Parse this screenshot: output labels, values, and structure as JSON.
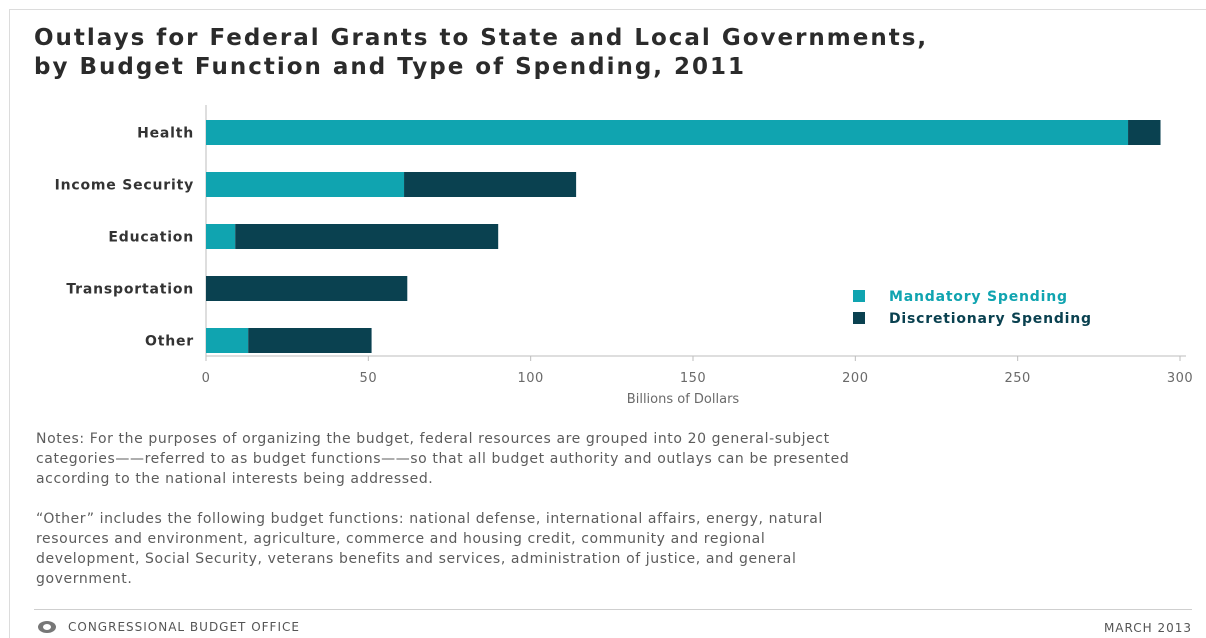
{
  "title_lines": [
    "Outlays for Federal Grants to State and Local Governments,",
    "by Budget Function and Type of Spending, 2011"
  ],
  "chart_data": {
    "type": "bar",
    "orientation": "horizontal",
    "stacked": true,
    "categories": [
      "Health",
      "Income Security",
      "Education",
      "Transportation",
      "Other"
    ],
    "series": [
      {
        "name": "Mandatory Spending",
        "color": "#10a4b0",
        "values": [
          284,
          61,
          9,
          0,
          13
        ]
      },
      {
        "name": "Discretionary Spending",
        "color": "#0a4150",
        "values": [
          10,
          53,
          81,
          62,
          38
        ]
      }
    ],
    "xlabel": "Billions of Dollars",
    "xlim": [
      0,
      300
    ],
    "xticks": [
      "0",
      "50",
      "100",
      "150",
      "200",
      "250",
      "300"
    ],
    "legend_position": "right",
    "grid": false
  },
  "notes": {
    "p1_lines": [
      "Notes: For the purposes of organizing the budget, federal resources are grouped into 20 general-subject",
      "categories——referred to as budget functions——so that all budget authority and outlays can be presented",
      "according to the national interests being addressed."
    ],
    "p2_lines": [
      "“Other” includes the following budget functions: national defense, international affairs, energy, natural",
      "resources and environment, agriculture, commerce and housing credit, community and regional",
      "development, Social Security, veterans benefits and services, administration of justice, and general",
      "government."
    ]
  },
  "footer": {
    "source": "CONGRESSIONAL BUDGET OFFICE",
    "date": "MARCH 2013",
    "logo_icon": "cbo-seal-icon"
  }
}
